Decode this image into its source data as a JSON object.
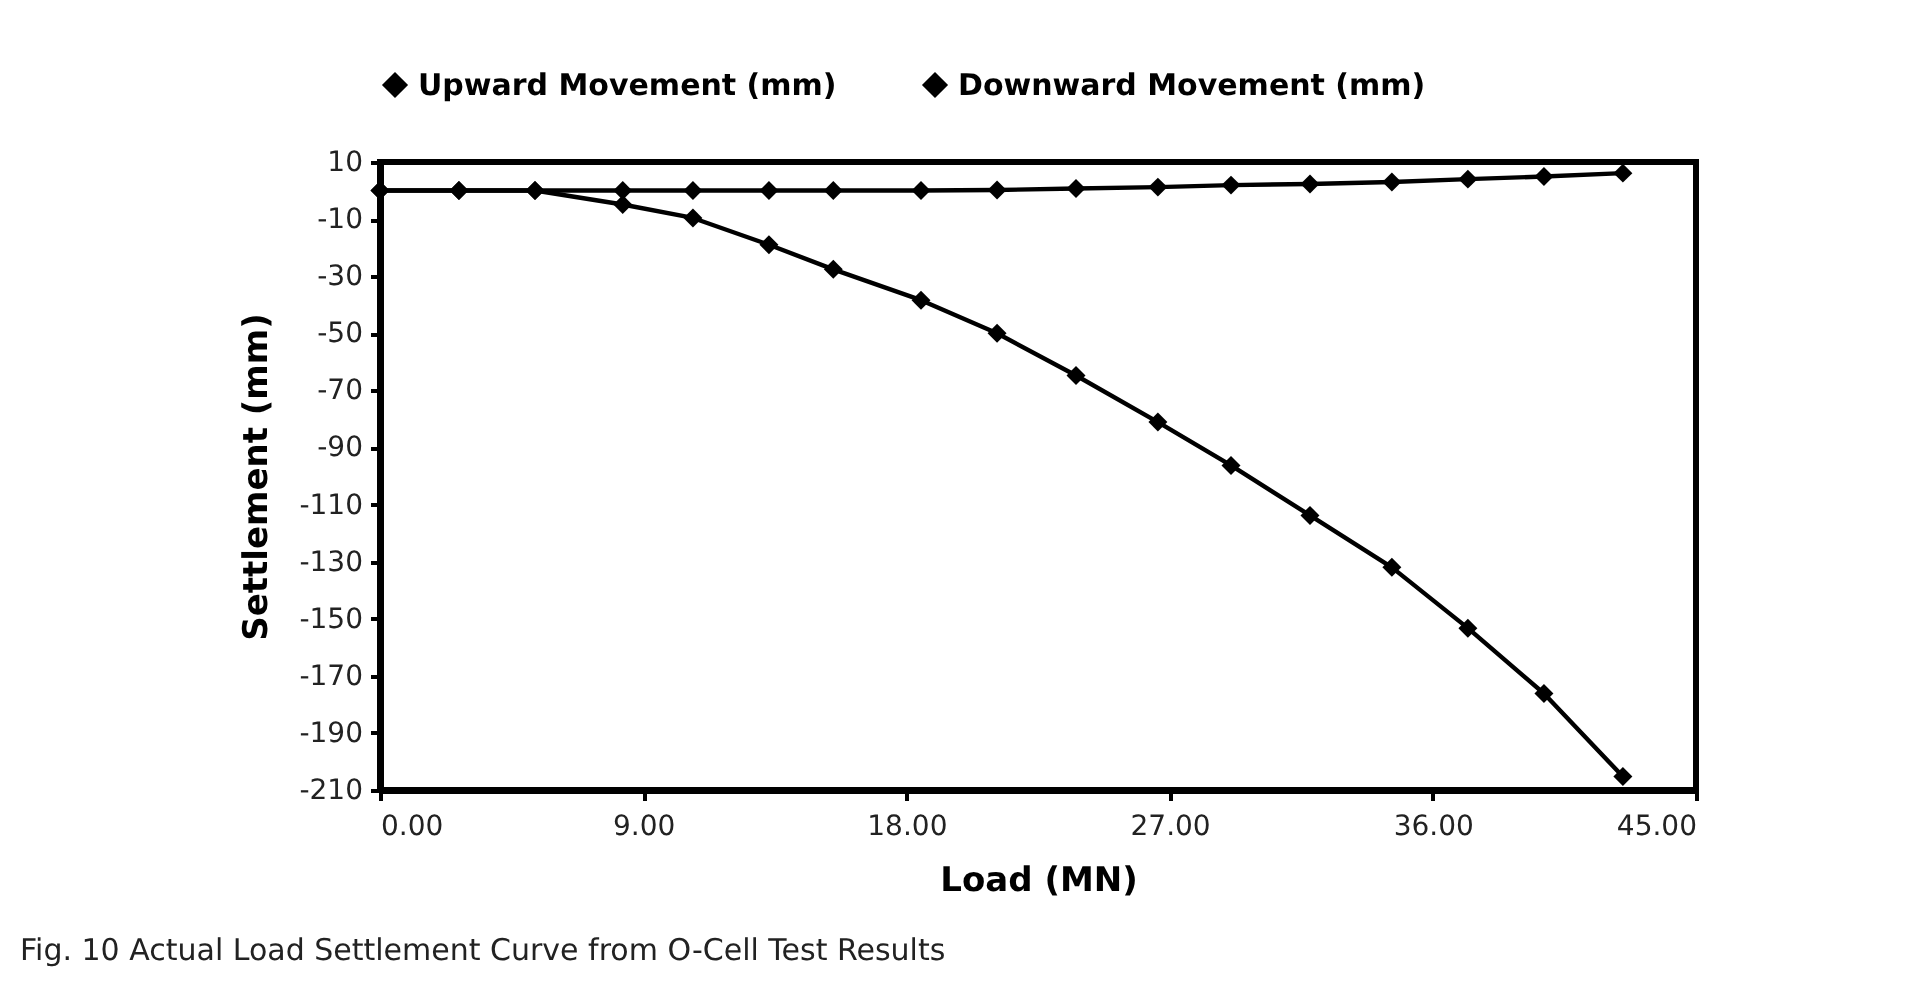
{
  "chart_data": {
    "type": "line",
    "xlabel": "Load (MN)",
    "ylabel": "Settlement (mm)",
    "x": [
      0,
      2.7,
      5.3,
      8.3,
      10.7,
      13.3,
      15.5,
      18.5,
      21.1,
      23.8,
      26.6,
      29.1,
      31.8,
      34.6,
      37.2,
      39.8,
      42.5
    ],
    "series": [
      {
        "name": "Upward Movement (mm)",
        "color": "#000000",
        "values": [
          0,
          0,
          0,
          0,
          0,
          0,
          0,
          0,
          0.2,
          0.7,
          1.2,
          1.9,
          2.3,
          3.0,
          4.0,
          4.9,
          6.1
        ]
      },
      {
        "name": "Downward Movement (mm)",
        "color": "#000000",
        "values": [
          0,
          0,
          0,
          -4.9,
          -9.6,
          -19,
          -27.6,
          -38.4,
          -50,
          -64.8,
          -81.1,
          -96.3,
          -113.8,
          -132,
          -153.3,
          -176.2,
          -205.3
        ]
      }
    ],
    "xlim": [
      0,
      45
    ],
    "xticks": [
      {
        "value": 0,
        "label": "0.00"
      },
      {
        "value": 9,
        "label": "9.00"
      },
      {
        "value": 18,
        "label": "18.00"
      },
      {
        "value": 27,
        "label": "27.00"
      },
      {
        "value": 36,
        "label": "36.00"
      },
      {
        "value": 45,
        "label": "45.00"
      }
    ],
    "ylim": [
      -210,
      10
    ],
    "yticks": [
      10,
      -10,
      -30,
      -50,
      -70,
      -90,
      -110,
      -130,
      -150,
      -170,
      -190,
      -210
    ],
    "grid": false,
    "legend": "top",
    "marker": "diamond",
    "line_style": "solid",
    "annotations": [
      "Fig. 10 Actual Load Settlement Curve from O-Cell Test Results"
    ]
  }
}
